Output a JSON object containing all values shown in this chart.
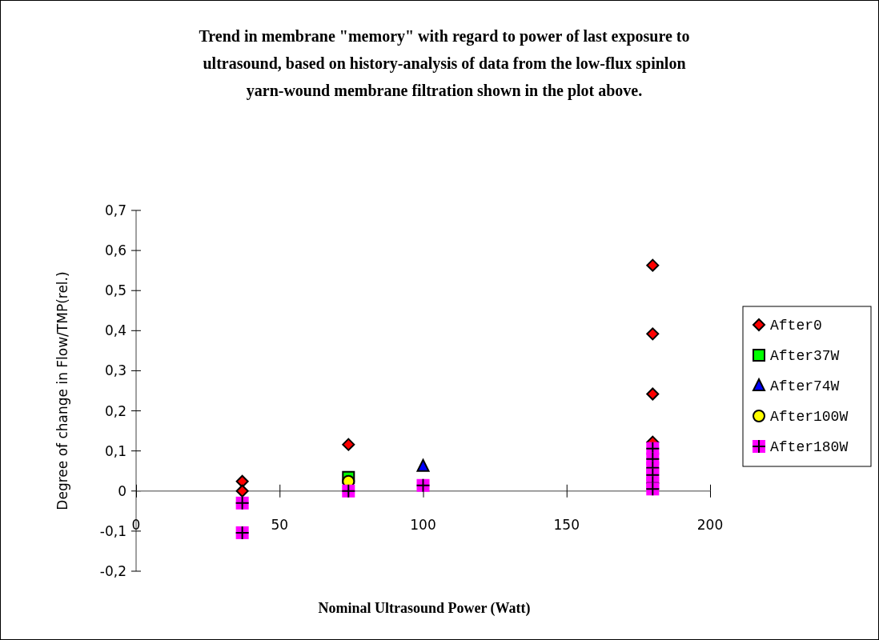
{
  "chart_data": {
    "type": "scatter",
    "title": "Trend in membrane \"memory\" with regard to power of last exposure to ultrasound, based on history-analysis of data from the low-flux spinlon yarn-wound membrane filtration shown in the plot above.",
    "xlabel": "Nominal Ultrasound Power (Watt)",
    "ylabel": "Degree of change in Flow/TMP(rel.)",
    "xlim": [
      0,
      200
    ],
    "xticks": [
      0,
      50,
      100,
      150,
      200
    ],
    "ylim": [
      -0.2,
      0.7
    ],
    "yticks": [
      {
        "value": -0.2,
        "label": "-0,2"
      },
      {
        "value": -0.1,
        "label": "-0,1"
      },
      0,
      {
        "value": 0.1,
        "label": "0,1"
      },
      {
        "value": 0.2,
        "label": "0,2"
      },
      {
        "value": 0.3,
        "label": "0,3"
      },
      {
        "value": 0.4,
        "label": "0,4"
      },
      {
        "value": 0.5,
        "label": "0,5"
      },
      {
        "value": 0.6,
        "label": "0,6"
      },
      {
        "value": 0.7,
        "label": "0,7"
      }
    ],
    "legend": "right",
    "grid": false,
    "series": [
      {
        "name": "After0",
        "color": "#ff0000",
        "marker": "diamond",
        "x": [
          37,
          37,
          74,
          180,
          180,
          180,
          180
        ],
        "values": [
          0.024,
          0,
          0.116,
          0.563,
          0.392,
          0.242,
          0.122
        ]
      },
      {
        "name": "After37W",
        "color": "#00ff00",
        "marker": "square",
        "x": [
          74
        ],
        "values": [
          0.034
        ]
      },
      {
        "name": "After74W",
        "color": "#0000ff",
        "marker": "triangle",
        "x": [
          100
        ],
        "values": [
          0.062
        ]
      },
      {
        "name": "After100W",
        "color": "#ffff00",
        "marker": "circle",
        "x": [
          74
        ],
        "values": [
          0.024
        ]
      },
      {
        "name": "After180W",
        "color": "#ff00ff",
        "marker": "square",
        "x": [
          37,
          37,
          74,
          100,
          180,
          180,
          180,
          180,
          180,
          180
        ],
        "values": [
          -0.03,
          -0.104,
          0,
          0.014,
          0.106,
          0.08,
          0.058,
          0.04,
          0.02,
          0.005
        ]
      }
    ]
  }
}
